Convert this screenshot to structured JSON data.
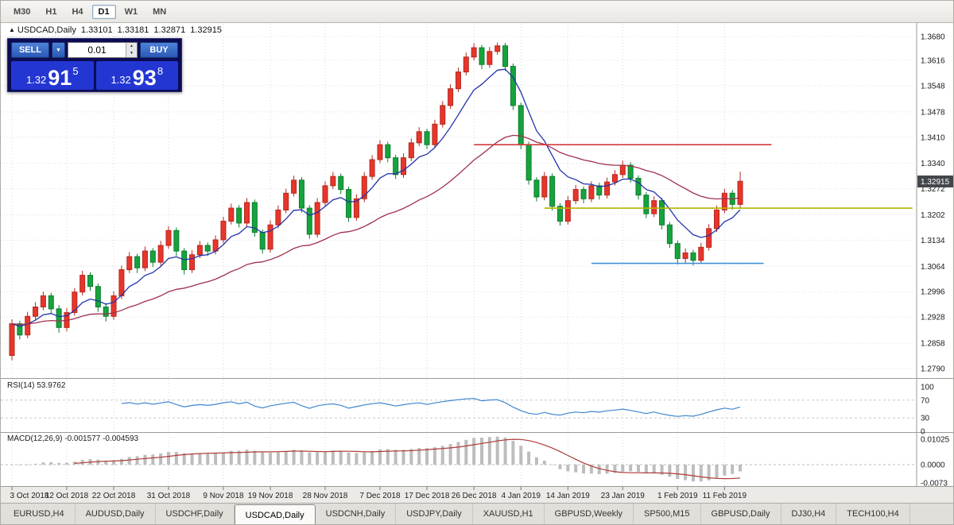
{
  "toolbar": {
    "timeframes": [
      "M30",
      "H1",
      "H4",
      "D1",
      "W1",
      "MN"
    ],
    "active": "D1"
  },
  "icons": {
    "collapse": "▲",
    "dropdown": "▼",
    "spin_up": "▲",
    "spin_down": "▼"
  },
  "chart": {
    "title": {
      "symbol": "USDCAD,Daily",
      "open": "1.33101",
      "high": "1.33181",
      "low": "1.32871",
      "close": "1.32915"
    },
    "trade_panel": {
      "sell_label": "SELL",
      "buy_label": "BUY",
      "volume": "0.01",
      "sell_price": {
        "big": "1.32",
        "mid": "91",
        "sup": "5"
      },
      "buy_price": {
        "big": "1.32",
        "mid": "93",
        "sup": "8"
      }
    }
  },
  "chart_data": {
    "type": "candlestick",
    "symbol": "USDCAD",
    "timeframe": "Daily",
    "last_price": "1.32915",
    "ylim": [
      1.279,
      1.368
    ],
    "y_ticks": [
      "1.3680",
      "1.3616",
      "1.3548",
      "1.3478",
      "1.3410",
      "1.3340",
      "1.3272",
      "1.3202",
      "1.3134",
      "1.3064",
      "1.2996",
      "1.2928",
      "1.2858",
      "1.2790"
    ],
    "x_ticks": [
      {
        "i": 0,
        "label": "3 Oct 2018"
      },
      {
        "i": 7,
        "label": "12 Oct 2018"
      },
      {
        "i": 13,
        "label": "22 Oct 2018"
      },
      {
        "i": 20,
        "label": "31 Oct 2018"
      },
      {
        "i": 27,
        "label": "9 Nov 2018"
      },
      {
        "i": 33,
        "label": "19 Nov 2018"
      },
      {
        "i": 40,
        "label": "28 Nov 2018"
      },
      {
        "i": 47,
        "label": "7 Dec 2018"
      },
      {
        "i": 53,
        "label": "17 Dec 2018"
      },
      {
        "i": 59,
        "label": "26 Dec 2018"
      },
      {
        "i": 65,
        "label": "4 Jan 2019"
      },
      {
        "i": 71,
        "label": "14 Jan 2019"
      },
      {
        "i": 78,
        "label": "23 Jan 2019"
      },
      {
        "i": 85,
        "label": "1 Feb 2019"
      },
      {
        "i": 91,
        "label": "11 Feb 2019"
      }
    ],
    "colors": {
      "bull": "#e8352b",
      "bull_stroke": "#b3291f",
      "bear": "#16a33d",
      "bear_stroke": "#0e7d2e"
    },
    "overlays": [
      {
        "name": "ma-fast",
        "type": "EMA",
        "period": 8,
        "color": "#2233aa"
      },
      {
        "name": "ma-slow",
        "type": "EMA",
        "period": 32,
        "color": "#a03050"
      }
    ],
    "hlines": [
      {
        "color": "#d23b3b",
        "price": 1.339,
        "from": 59,
        "to": 97
      },
      {
        "color": "#b5b400",
        "price": 1.322,
        "from": 68,
        "to": 115
      },
      {
        "color": "#3e93d8",
        "price": 1.3072,
        "from": 74,
        "to": 96
      }
    ],
    "indicators": {
      "rsi": {
        "label": "RSI(14) 53.9762",
        "period": 14,
        "levels": [
          100,
          70,
          30,
          0
        ],
        "color": "#3f86cf"
      },
      "macd": {
        "label": "MACD(12,26,9) -0.001577 -0.004593",
        "fast": 12,
        "slow": 26,
        "signal": 9,
        "levels": [
          "0.01025",
          "0.0000",
          "-0.0073"
        ],
        "hist_color": "#bdbdbd",
        "signal_color": "#b03a3a"
      }
    },
    "candles": [
      [
        1.2825,
        1.2922,
        1.2812,
        1.291
      ],
      [
        1.291,
        1.2918,
        1.2868,
        1.288
      ],
      [
        1.288,
        1.2942,
        1.2871,
        1.293
      ],
      [
        1.293,
        1.2968,
        1.2921,
        1.2955
      ],
      [
        1.2955,
        1.2996,
        1.2946,
        1.2985
      ],
      [
        1.2985,
        1.2993,
        1.2938,
        1.295
      ],
      [
        1.295,
        1.296,
        1.2886,
        1.29
      ],
      [
        1.29,
        1.2952,
        1.289,
        1.294
      ],
      [
        1.294,
        1.3006,
        1.2932,
        1.2995
      ],
      [
        1.2995,
        1.3052,
        1.2986,
        1.304
      ],
      [
        1.304,
        1.3048,
        1.2998,
        1.301
      ],
      [
        1.301,
        1.3018,
        1.2942,
        1.2955
      ],
      [
        1.2955,
        1.2966,
        1.2916,
        1.293
      ],
      [
        1.293,
        1.2997,
        1.2921,
        1.2985
      ],
      [
        1.2985,
        1.3066,
        1.2976,
        1.3055
      ],
      [
        1.3055,
        1.3102,
        1.3046,
        1.309
      ],
      [
        1.309,
        1.3098,
        1.3046,
        1.306
      ],
      [
        1.306,
        1.3117,
        1.3051,
        1.3105
      ],
      [
        1.3105,
        1.3113,
        1.3062,
        1.3075
      ],
      [
        1.3075,
        1.3132,
        1.3066,
        1.312
      ],
      [
        1.312,
        1.3172,
        1.3111,
        1.316
      ],
      [
        1.316,
        1.3168,
        1.3092,
        1.3105
      ],
      [
        1.3105,
        1.3113,
        1.3042,
        1.3055
      ],
      [
        1.3055,
        1.3107,
        1.3046,
        1.3095
      ],
      [
        1.3095,
        1.3132,
        1.3086,
        1.312
      ],
      [
        1.312,
        1.3128,
        1.3092,
        1.3105
      ],
      [
        1.3105,
        1.3147,
        1.3096,
        1.3135
      ],
      [
        1.3135,
        1.3197,
        1.3126,
        1.3185
      ],
      [
        1.3185,
        1.3232,
        1.3176,
        1.322
      ],
      [
        1.322,
        1.3228,
        1.3168,
        1.318
      ],
      [
        1.318,
        1.3247,
        1.3171,
        1.3235
      ],
      [
        1.3235,
        1.3243,
        1.3143,
        1.3155
      ],
      [
        1.3155,
        1.3163,
        1.3098,
        1.311
      ],
      [
        1.311,
        1.3187,
        1.3101,
        1.3175
      ],
      [
        1.3175,
        1.3227,
        1.3166,
        1.3215
      ],
      [
        1.3215,
        1.3272,
        1.3206,
        1.326
      ],
      [
        1.326,
        1.3307,
        1.3251,
        1.3295
      ],
      [
        1.3295,
        1.3303,
        1.3208,
        1.322
      ],
      [
        1.322,
        1.3228,
        1.3138,
        1.315
      ],
      [
        1.315,
        1.3247,
        1.3141,
        1.3235
      ],
      [
        1.3235,
        1.3292,
        1.3226,
        1.328
      ],
      [
        1.328,
        1.3317,
        1.3271,
        1.3305
      ],
      [
        1.3305,
        1.3313,
        1.3258,
        1.327
      ],
      [
        1.327,
        1.3278,
        1.3183,
        1.3195
      ],
      [
        1.3195,
        1.3257,
        1.3186,
        1.3245
      ],
      [
        1.3245,
        1.3317,
        1.3236,
        1.3305
      ],
      [
        1.3305,
        1.3362,
        1.3296,
        1.335
      ],
      [
        1.335,
        1.3402,
        1.3341,
        1.339
      ],
      [
        1.339,
        1.3398,
        1.3343,
        1.3355
      ],
      [
        1.3355,
        1.3363,
        1.3298,
        1.331
      ],
      [
        1.331,
        1.3367,
        1.3301,
        1.3355
      ],
      [
        1.3355,
        1.3407,
        1.3346,
        1.3395
      ],
      [
        1.3395,
        1.3437,
        1.3386,
        1.3425
      ],
      [
        1.3425,
        1.3433,
        1.3378,
        1.339
      ],
      [
        1.339,
        1.3457,
        1.3381,
        1.3445
      ],
      [
        1.3445,
        1.3507,
        1.3436,
        1.3495
      ],
      [
        1.3495,
        1.3552,
        1.3486,
        1.354
      ],
      [
        1.354,
        1.3597,
        1.3531,
        1.3585
      ],
      [
        1.3585,
        1.3637,
        1.3576,
        1.3625
      ],
      [
        1.3625,
        1.3662,
        1.3616,
        1.365
      ],
      [
        1.365,
        1.3658,
        1.3593,
        1.3605
      ],
      [
        1.3605,
        1.3652,
        1.3596,
        1.364
      ],
      [
        1.364,
        1.3664,
        1.3631,
        1.3655
      ],
      [
        1.3655,
        1.3663,
        1.3588,
        1.36
      ],
      [
        1.36,
        1.3608,
        1.3483,
        1.3495
      ],
      [
        1.3495,
        1.3503,
        1.3378,
        1.339
      ],
      [
        1.339,
        1.3398,
        1.3283,
        1.3295
      ],
      [
        1.3295,
        1.3303,
        1.3238,
        1.325
      ],
      [
        1.325,
        1.3317,
        1.3241,
        1.3305
      ],
      [
        1.3305,
        1.3313,
        1.3213,
        1.3225
      ],
      [
        1.3225,
        1.3233,
        1.3173,
        1.3185
      ],
      [
        1.3185,
        1.3252,
        1.3176,
        1.324
      ],
      [
        1.324,
        1.3282,
        1.3231,
        1.327
      ],
      [
        1.327,
        1.3278,
        1.3233,
        1.3245
      ],
      [
        1.3245,
        1.3292,
        1.3236,
        1.328
      ],
      [
        1.328,
        1.3288,
        1.3243,
        1.3255
      ],
      [
        1.3255,
        1.3302,
        1.3246,
        1.329
      ],
      [
        1.329,
        1.3322,
        1.3281,
        1.331
      ],
      [
        1.331,
        1.3347,
        1.3301,
        1.3335
      ],
      [
        1.3335,
        1.3343,
        1.3288,
        1.33
      ],
      [
        1.33,
        1.3308,
        1.3243,
        1.3255
      ],
      [
        1.3255,
        1.3263,
        1.3193,
        1.3205
      ],
      [
        1.3205,
        1.3252,
        1.3196,
        1.324
      ],
      [
        1.324,
        1.3248,
        1.3163,
        1.3175
      ],
      [
        1.3175,
        1.3183,
        1.3113,
        1.3125
      ],
      [
        1.3125,
        1.3133,
        1.3069,
        1.3085
      ],
      [
        1.3085,
        1.3112,
        1.3073,
        1.31
      ],
      [
        1.31,
        1.3108,
        1.3066,
        1.308
      ],
      [
        1.308,
        1.3127,
        1.3071,
        1.3115
      ],
      [
        1.3115,
        1.3177,
        1.3106,
        1.3165
      ],
      [
        1.3165,
        1.3227,
        1.3156,
        1.3215
      ],
      [
        1.3215,
        1.3272,
        1.3206,
        1.326
      ],
      [
        1.326,
        1.3268,
        1.3216,
        1.323
      ],
      [
        1.323,
        1.3318,
        1.3221,
        1.3292
      ]
    ]
  },
  "tabs": {
    "items": [
      "EURUSD,H4",
      "AUDUSD,Daily",
      "USDCHF,Daily",
      "USDCAD,Daily",
      "USDCNH,Daily",
      "USDJPY,Daily",
      "XAUUSD,H1",
      "GBPUSD,Weekly",
      "SP500,M15",
      "GBPUSD,Daily",
      "DJ30,H4",
      "TECH100,H4"
    ],
    "active": "USDCAD,Daily"
  }
}
